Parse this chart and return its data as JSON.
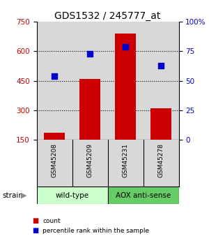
{
  "title": "GDS1532 / 245777_at",
  "samples": [
    "GSM45208",
    "GSM45209",
    "GSM45231",
    "GSM45278"
  ],
  "counts": [
    185,
    460,
    690,
    310
  ],
  "percentiles": [
    54,
    73,
    79,
    63
  ],
  "ylim_left": [
    150,
    750
  ],
  "ylim_right": [
    0,
    100
  ],
  "yticks_left": [
    150,
    300,
    450,
    600,
    750
  ],
  "yticks_right": [
    0,
    25,
    50,
    75,
    100
  ],
  "bar_color": "#cc0000",
  "dot_color": "#0000cc",
  "bar_width": 0.6,
  "groups": [
    {
      "label": "wild-type",
      "indices": [
        0,
        1
      ],
      "color": "#ccffcc"
    },
    {
      "label": "AOX anti-sense",
      "indices": [
        2,
        3
      ],
      "color": "#66cc66"
    }
  ],
  "xlabel": "strain",
  "background_color": "#ffffff",
  "plot_bg_color": "#d8d8d8",
  "title_fontsize": 10,
  "tick_label_color_left": "#cc0000",
  "tick_label_color_right": "#0000cc",
  "grid_vals": [
    300,
    450,
    600
  ]
}
